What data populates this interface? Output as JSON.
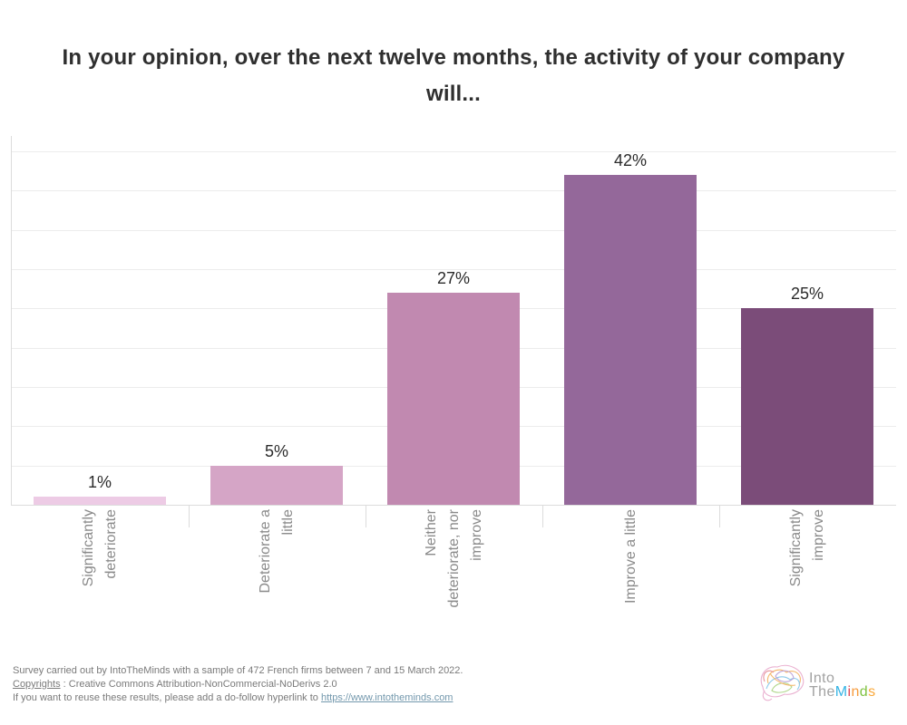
{
  "title_lines": [
    "In your opinion, over the next twelve months, the activity of your company",
    "will..."
  ],
  "chart_data": {
    "type": "bar",
    "title": "In your opinion, over the next twelve months, the activity of your company will...",
    "categories": [
      "Significantly deteriorate",
      "Deteriorate a little",
      "Neither deteriorate, nor improve",
      "Improve a little",
      "Significantly improve"
    ],
    "category_label_lines": [
      [
        "Significantly",
        "deteriorate"
      ],
      [
        "Deteriorate a",
        "little"
      ],
      [
        "Neither",
        "deteriorate, nor",
        "improve"
      ],
      [
        "Improve a little"
      ],
      [
        "Significantly",
        "improve"
      ]
    ],
    "values": [
      1,
      5,
      27,
      42,
      25
    ],
    "value_labels": [
      "1%",
      "5%",
      "27%",
      "42%",
      "25%"
    ],
    "value_suffix": "%",
    "bar_colors": [
      "#edcbe5",
      "#d5a5c6",
      "#c189b0",
      "#94689a",
      "#7b4c79"
    ],
    "xlabel": "",
    "ylabel": "",
    "ylim": [
      0,
      47
    ],
    "grid_step": 5,
    "grid": "horizontal-light-gray",
    "legend": "none",
    "bar_label_position": "above-bar",
    "category_label_rotation": "90deg-bottom-to-top"
  },
  "footer": {
    "survey_line": "Survey carried out by  IntoTheMinds with a sample of 472 French firms between 7 and 15 March 2022.",
    "copyrights_link": "Copyrights",
    "copyrights_rest": " : Creative Commons Attribution-NonCommercial-NoDerivs 2.0",
    "reuse_text": "If you want to reuse these results, please add a do-follow hyperlink to ",
    "reuse_link": "https://www.intotheminds.com"
  },
  "logo": {
    "word1": "Into",
    "word2_gray": "The",
    "word2_letters": [
      {
        "ch": "M",
        "color": "#35b4e5"
      },
      {
        "ch": "i",
        "color": "#e04a5a"
      },
      {
        "ch": "n",
        "color": "#f79b3d"
      },
      {
        "ch": "d",
        "color": "#7fc241"
      },
      {
        "ch": "s",
        "color": "#f9a83a"
      }
    ]
  },
  "colors": {
    "title_text": "#2f2f2f",
    "value_label": "#2b2b2b",
    "category_label": "#8a8a8a",
    "footer_text": "#7a7a7a",
    "url_link": "#7398ad",
    "gridline": "#ececec",
    "axis_line": "#dcdcdc"
  }
}
